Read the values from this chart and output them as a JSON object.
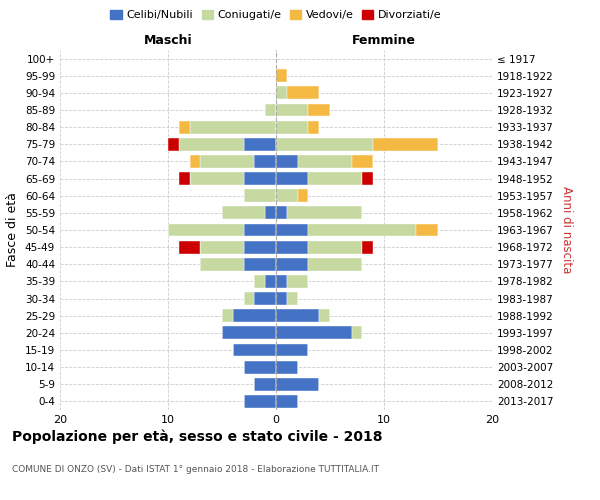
{
  "age_groups": [
    "0-4",
    "5-9",
    "10-14",
    "15-19",
    "20-24",
    "25-29",
    "30-34",
    "35-39",
    "40-44",
    "45-49",
    "50-54",
    "55-59",
    "60-64",
    "65-69",
    "70-74",
    "75-79",
    "80-84",
    "85-89",
    "90-94",
    "95-99",
    "100+"
  ],
  "birth_years": [
    "2013-2017",
    "2008-2012",
    "2003-2007",
    "1998-2002",
    "1993-1997",
    "1988-1992",
    "1983-1987",
    "1978-1982",
    "1973-1977",
    "1968-1972",
    "1963-1967",
    "1958-1962",
    "1953-1957",
    "1948-1952",
    "1943-1947",
    "1938-1942",
    "1933-1937",
    "1928-1932",
    "1923-1927",
    "1918-1922",
    "≤ 1917"
  ],
  "males": {
    "celibi": [
      3,
      2,
      3,
      4,
      5,
      4,
      2,
      1,
      3,
      3,
      3,
      1,
      0,
      3,
      2,
      3,
      0,
      0,
      0,
      0,
      0
    ],
    "coniugati": [
      0,
      0,
      0,
      0,
      0,
      1,
      1,
      1,
      4,
      4,
      7,
      4,
      3,
      5,
      5,
      6,
      8,
      1,
      0,
      0,
      0
    ],
    "vedovi": [
      0,
      0,
      0,
      0,
      0,
      0,
      0,
      0,
      0,
      0,
      0,
      0,
      0,
      0,
      1,
      0,
      1,
      0,
      0,
      0,
      0
    ],
    "divorziati": [
      0,
      0,
      0,
      0,
      0,
      0,
      0,
      0,
      0,
      2,
      0,
      0,
      0,
      1,
      0,
      1,
      0,
      0,
      0,
      0,
      0
    ]
  },
  "females": {
    "nubili": [
      2,
      4,
      2,
      3,
      7,
      4,
      1,
      1,
      3,
      3,
      3,
      1,
      0,
      3,
      2,
      0,
      0,
      0,
      0,
      0,
      0
    ],
    "coniugate": [
      0,
      0,
      0,
      0,
      1,
      1,
      1,
      2,
      5,
      5,
      10,
      7,
      2,
      5,
      5,
      9,
      3,
      3,
      1,
      0,
      0
    ],
    "vedove": [
      0,
      0,
      0,
      0,
      0,
      0,
      0,
      0,
      0,
      0,
      2,
      0,
      1,
      0,
      2,
      6,
      1,
      2,
      3,
      1,
      0
    ],
    "divorziate": [
      0,
      0,
      0,
      0,
      0,
      0,
      0,
      0,
      0,
      1,
      0,
      0,
      0,
      1,
      0,
      0,
      0,
      0,
      0,
      0,
      0
    ]
  },
  "colors": {
    "celibi": "#4472c4",
    "coniugati": "#c5d9a0",
    "vedovi": "#f4b942",
    "divorziati": "#cc0000"
  },
  "xlim": [
    -20,
    20
  ],
  "xticks": [
    -20,
    -10,
    0,
    10,
    20
  ],
  "xticklabels": [
    "20",
    "10",
    "0",
    "10",
    "20"
  ],
  "title": "Popolazione per età, sesso e stato civile - 2018",
  "subtitle": "COMUNE DI ONZO (SV) - Dati ISTAT 1° gennaio 2018 - Elaborazione TUTTITALIA.IT",
  "ylabel": "Fasce di età",
  "ylabel2": "Anni di nascita",
  "legend_labels": [
    "Celibi/Nubili",
    "Coniugati/e",
    "Vedovi/e",
    "Divorziati/e"
  ],
  "maschi_label": "Maschi",
  "femmine_label": "Femmine",
  "background_color": "#ffffff",
  "grid_color": "#cccccc"
}
